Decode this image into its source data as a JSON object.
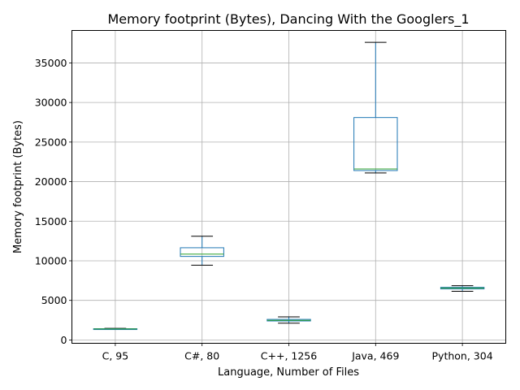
{
  "chart_data": {
    "type": "box",
    "title": "Memory footprint (Bytes), Dancing With the Googlers_1",
    "xlabel": "Language, Number of Files",
    "ylabel": "Memory footprint (Bytes)",
    "categories": [
      "C, 95",
      "C#, 80",
      "C++, 1256",
      "Java, 469",
      "Python, 304"
    ],
    "boxes": [
      {
        "whisker_low": 1330,
        "q1": 1360,
        "median": 1390,
        "q3": 1420,
        "whisker_high": 1460
      },
      {
        "whisker_low": 9450,
        "q1": 10550,
        "median": 10850,
        "q3": 11650,
        "whisker_high": 13100
      },
      {
        "whisker_low": 2120,
        "q1": 2400,
        "median": 2480,
        "q3": 2600,
        "whisker_high": 2920
      },
      {
        "whisker_low": 21100,
        "q1": 21400,
        "median": 21600,
        "q3": 28100,
        "whisker_high": 37600
      },
      {
        "whisker_low": 6150,
        "q1": 6450,
        "median": 6550,
        "q3": 6650,
        "whisker_high": 6850
      }
    ],
    "ylim": [
      -420,
      39100
    ],
    "yticks": [
      0,
      5000,
      10000,
      15000,
      20000,
      25000,
      30000,
      35000
    ],
    "grid": true,
    "colors": {
      "box": "#1f77b4",
      "median": "#2ca02c",
      "cap": "#000000",
      "grid": "#b0b0b0"
    }
  }
}
